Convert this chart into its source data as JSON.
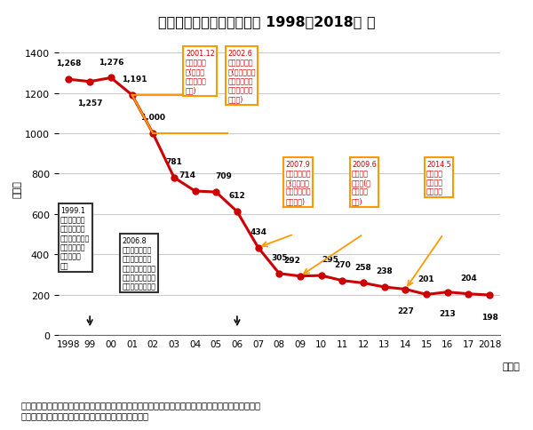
{
  "title": "飲酒死亡事故件数の推移（ 1998～2018年 ）",
  "ylabel": "（件）",
  "xlabel_suffix": "（年）",
  "years": [
    1998,
    1999,
    2000,
    2001,
    2002,
    2003,
    2004,
    2005,
    2006,
    2007,
    2008,
    2009,
    2010,
    2011,
    2012,
    2013,
    2014,
    2015,
    2016,
    2017,
    2018
  ],
  "values": [
    1268,
    1257,
    1276,
    1191,
    1000,
    781,
    714,
    709,
    612,
    434,
    305,
    292,
    295,
    270,
    258,
    238,
    227,
    201,
    213,
    204,
    198
  ],
  "x_labels": [
    "1998",
    "99",
    "00",
    "01",
    "02",
    "03",
    "04",
    "05",
    "06",
    "07",
    "08",
    "09",
    "10",
    "11",
    "12",
    "13",
    "14",
    "15",
    "16",
    "17",
    "2018"
  ],
  "line_color": "#cc0000",
  "marker_color": "#cc0000",
  "bg_color": "#ffffff",
  "grid_color": "#cccccc",
  "ylim": [
    0,
    1450
  ],
  "yticks": [
    0,
    200,
    400,
    600,
    800,
    1000,
    1200,
    1400
  ],
  "note": "（注）・「飲酒死亡事故」とは、第１当事者の飲酒状況が酒酔い、酒気帯び、基準以下、検知不能の\n　　　　いずれかに該当する場合の死亡事故をいう。",
  "ann1999_text": "1999.1\n東名高速で乗\n用車が飲酒運\n転のトラックに\n衝突され、幼\n児２名が死\n亡。",
  "ann2006_text": "2006.8\n福岡市内の橋上\nで乗用車が飲酒\n運転の車に追突さ\nれ、海上へ転落。\n幼児３名が死亡。",
  "ann2001_text": "2001.12\n改正刑法施\n行(危険運\n転致死傷罪\n新設)",
  "ann2002_text": "2002.6\n改正道交法施\n行(厳罰化、酒\n気帯び運転の\n罰則適用対象\n見直し)",
  "ann2007_text": "2007.9\n改正道交法施\n行(飲酒運転\n及び助長行為\nの厳罰化)",
  "ann2009_text": "2009.6\n改正道交\n法施行(行\n政処分の\n強化)",
  "ann2014_text": "2014.5\n自動車運\n転死傷処\n罰法施行",
  "orange_color": "#ff9900",
  "dark_color": "#333333",
  "red_color": "#cc0000"
}
